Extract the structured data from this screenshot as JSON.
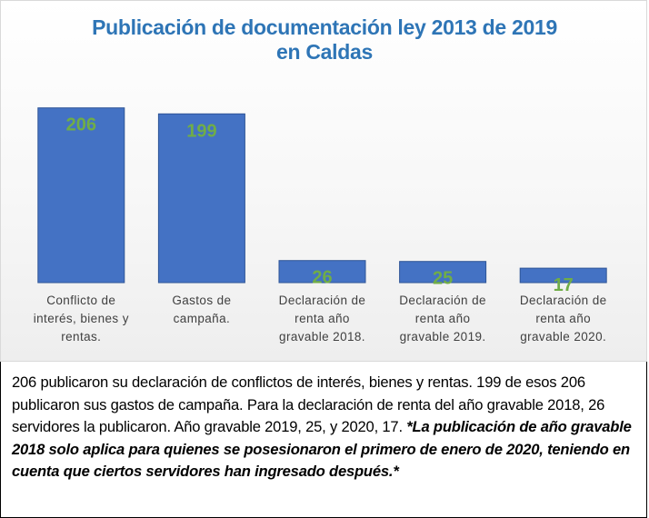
{
  "chart_data": {
    "type": "bar",
    "title_lines": [
      "Publicación de documentación ley 2013 de 2019",
      "en Caldas"
    ],
    "categories": [
      [
        "Conflicto de",
        "interés, bienes y",
        "rentas."
      ],
      [
        "Gastos de",
        "campaña."
      ],
      [
        "Declaración de",
        "renta año",
        "gravable 2018."
      ],
      [
        "Declaración de",
        "renta año",
        "gravable 2019."
      ],
      [
        "Declaración de",
        "renta año",
        "gravable 2020."
      ]
    ],
    "values": [
      206,
      199,
      26,
      25,
      17
    ],
    "data_labels": [
      "206",
      "199",
      "26",
      "25",
      "17"
    ],
    "ylim": [
      0,
      240
    ],
    "grid": false,
    "legend": "none",
    "colors": {
      "bar": "#4472c4",
      "bar_border": "#2f5597",
      "data_label": "#70ad47",
      "title": "#2e75b6"
    }
  },
  "caption": {
    "text": "206 publicaron su  declaración de conflictos de interés, bienes y rentas. 199 de esos 206 publicaron sus gastos de campaña. Para la declaración de renta del año gravable 2018, 26 servidores la publicaron. Año gravable 2019, 25, y 2020, 17.",
    "note": "*La publicación de año gravable 2018 solo aplica para quienes se posesionaron el primero de enero de 2020, teniendo en cuenta que ciertos servidores han ingresado después.*"
  }
}
